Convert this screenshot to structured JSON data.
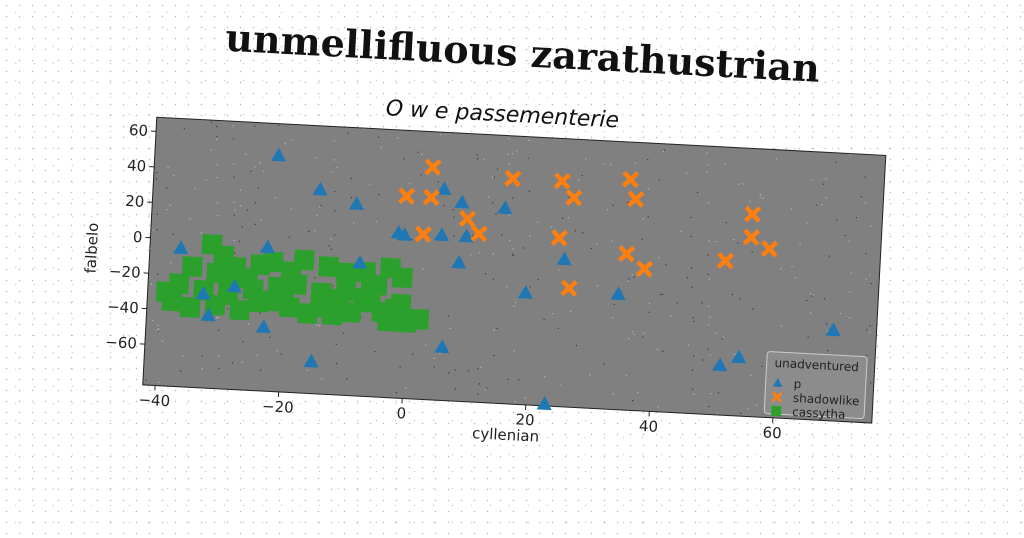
{
  "figure_title": "unmellifluous zarathustrian",
  "chart_data": {
    "type": "scatter",
    "title": "O w e passementerie",
    "xlabel": "cyllenian",
    "ylabel": "falbelo",
    "xlim": [
      -42,
      76
    ],
    "ylim": [
      -83,
      68
    ],
    "xticks": [
      -40,
      -20,
      0,
      20,
      40,
      60
    ],
    "yticks": [
      -60,
      -40,
      -20,
      0,
      20,
      40,
      60
    ],
    "grid": false,
    "legend": {
      "title": "unadventured",
      "placement": "lower-right"
    },
    "plot_background": "#808080",
    "series": [
      {
        "name": "p",
        "marker": "triangle",
        "color": "#1f77b4",
        "points": [
          [
            -22,
            50
          ],
          [
            -15,
            32
          ],
          [
            -9,
            25
          ],
          [
            -2,
            10
          ],
          [
            -1,
            9
          ],
          [
            5,
            36
          ],
          [
            5,
            10
          ],
          [
            8,
            29
          ],
          [
            9,
            10
          ],
          [
            15,
            27
          ],
          [
            8,
            -5
          ],
          [
            -37,
            -5
          ],
          [
            -23,
            -2
          ],
          [
            -8,
            -8
          ],
          [
            -33,
            -30
          ],
          [
            -32,
            -42
          ],
          [
            -28,
            -25
          ],
          [
            -23,
            -47
          ],
          [
            -15,
            -65
          ],
          [
            6,
            -53
          ],
          [
            19,
            -20
          ],
          [
            23,
            -82
          ],
          [
            25,
            0
          ],
          [
            34,
            -18
          ],
          [
            51,
            -55
          ],
          [
            54,
            -50
          ],
          [
            69,
            -32
          ]
        ]
      },
      {
        "name": "shadowlike",
        "marker": "x",
        "color": "#ff7f0e",
        "points": [
          [
            3,
            48
          ],
          [
            -1,
            31
          ],
          [
            3,
            31
          ],
          [
            2,
            10
          ],
          [
            9,
            20
          ],
          [
            11,
            12
          ],
          [
            16,
            44
          ],
          [
            24,
            44
          ],
          [
            26,
            35
          ],
          [
            24,
            12
          ],
          [
            26,
            -16
          ],
          [
            35,
            47
          ],
          [
            36,
            36
          ],
          [
            35,
            5
          ],
          [
            38,
            -3
          ],
          [
            51,
            4
          ],
          [
            55,
            31
          ],
          [
            55,
            18
          ],
          [
            58,
            12
          ]
        ]
      },
      {
        "name": "cassytha",
        "marker": "square",
        "color": "#2ca02c",
        "points": [
          [
            -32,
            -2
          ],
          [
            -30,
            -8
          ],
          [
            -35,
            -15
          ],
          [
            -31,
            -18
          ],
          [
            -28,
            -14
          ],
          [
            -26,
            -20
          ],
          [
            -24,
            -12
          ],
          [
            -22,
            -10
          ],
          [
            -19,
            -15
          ],
          [
            -17,
            -8
          ],
          [
            -13,
            -11
          ],
          [
            -10,
            -14
          ],
          [
            -7,
            -13
          ],
          [
            -5,
            -20
          ],
          [
            -3,
            -10
          ],
          [
            -1,
            -15
          ],
          [
            -37,
            -25
          ],
          [
            -33,
            -28
          ],
          [
            -29,
            -30
          ],
          [
            -25,
            -26
          ],
          [
            -21,
            -24
          ],
          [
            -18,
            -22
          ],
          [
            -14,
            -26
          ],
          [
            -11,
            -29
          ],
          [
            -7,
            -28
          ],
          [
            -4,
            -35
          ],
          [
            -2,
            -33
          ],
          [
            0,
            -40
          ],
          [
            2,
            -38
          ],
          [
            -38,
            -35
          ],
          [
            -35,
            -38
          ],
          [
            -31,
            -36
          ],
          [
            -27,
            -38
          ],
          [
            -22,
            -32
          ],
          [
            -19,
            -35
          ],
          [
            -16,
            -38
          ],
          [
            -12,
            -38
          ],
          [
            -9,
            -36
          ],
          [
            -6,
            -30
          ],
          [
            -3,
            -40
          ],
          [
            -24,
            -33
          ],
          [
            -14,
            -34
          ],
          [
            -39,
            -30
          ],
          [
            -10,
            -24
          ],
          [
            -20,
            -28
          ],
          [
            -29,
            -20
          ],
          [
            -6,
            -22
          ],
          [
            -1,
            -30
          ]
        ]
      }
    ]
  }
}
